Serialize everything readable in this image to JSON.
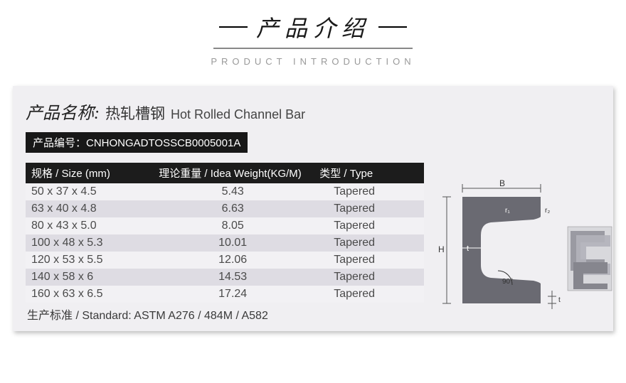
{
  "header": {
    "title_cn": "产品介绍",
    "title_en": "PRODUCT INTRODUCTION"
  },
  "product": {
    "name_label": "产品名称:",
    "name_cn": "热轧槽钢",
    "name_en": "Hot Rolled Channel Bar",
    "code_label": "产品编号：",
    "code_value": "CNHONGADTOSSCB0005001A"
  },
  "table": {
    "headers": {
      "size": "规格 / Size (mm)",
      "weight": "理论重量 / Idea Weight(KG/M)",
      "type": "类型 / Type"
    },
    "rows": [
      {
        "size": "50 x 37 x 4.5",
        "weight": "5.43",
        "type": "Tapered"
      },
      {
        "size": "63 x 40 x 4.8",
        "weight": "6.63",
        "type": "Tapered"
      },
      {
        "size": "80 x 43 x 5.0",
        "weight": "8.05",
        "type": "Tapered"
      },
      {
        "size": "100 x 48 x 5.3",
        "weight": "10.01",
        "type": "Tapered"
      },
      {
        "size": "120 x 53 x 5.5",
        "weight": "12.06",
        "type": "Tapered"
      },
      {
        "size": "140 x 58 x 6",
        "weight": "14.53",
        "type": "Tapered"
      },
      {
        "size": "160 x 63 x 6.5",
        "weight": "17.24",
        "type": "Tapered"
      }
    ],
    "standard": "生产标准 / Standard: ASTM A276 / 484M / A582"
  },
  "diagram": {
    "labels": {
      "B": "B",
      "H": "H",
      "t": "t",
      "r1": "r₁",
      "r2": "r₂",
      "angle": "90°",
      "tb": "t"
    },
    "colors": {
      "shape_fill": "#6a6a72",
      "dim_line": "#555555",
      "label_text": "#333333",
      "panel_bg": "#f0eff2"
    }
  },
  "style": {
    "header_bg": "#1c1c1c",
    "row_light": "#f2f1f4",
    "row_dark": "#dedce3",
    "badge_bg": "#181818",
    "text_color": "#4a4a4a"
  }
}
